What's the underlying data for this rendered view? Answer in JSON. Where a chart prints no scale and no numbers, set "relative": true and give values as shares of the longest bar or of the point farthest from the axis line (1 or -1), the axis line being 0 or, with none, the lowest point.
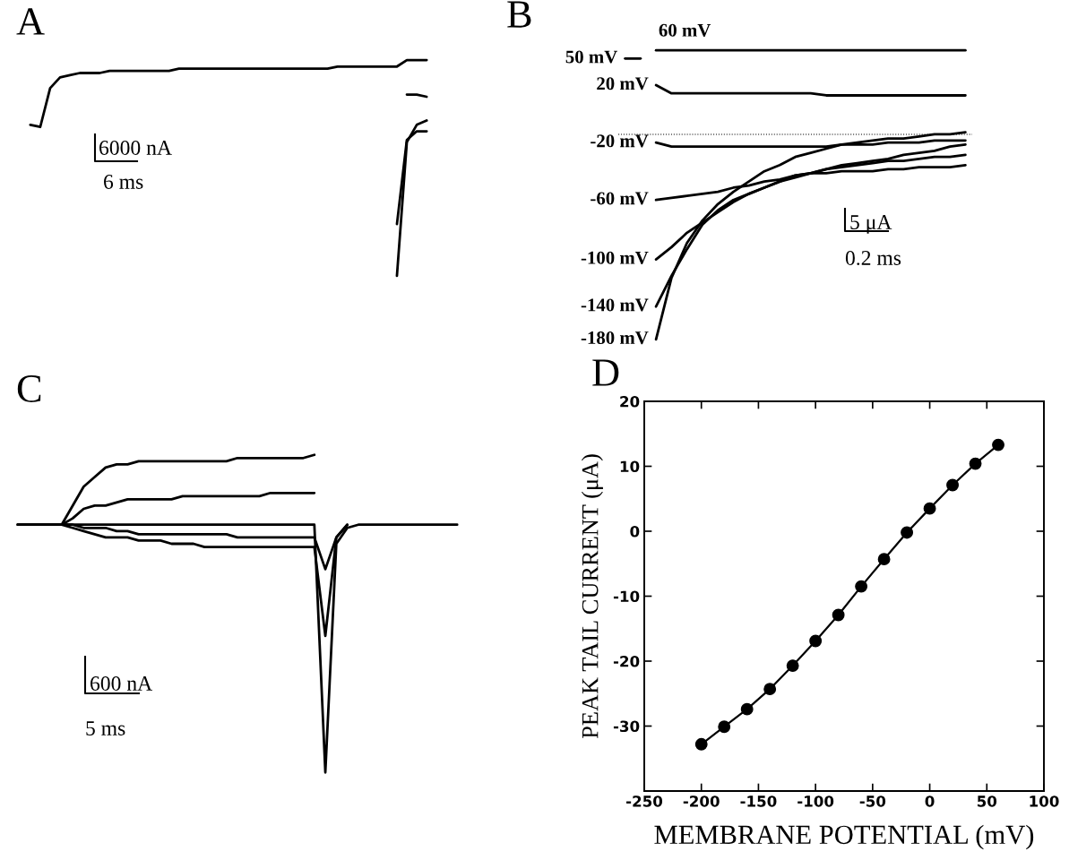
{
  "chart_data": [
    {
      "type": "line",
      "title": "A",
      "relative": true,
      "annotations": [
        "6000 nA",
        "6 ms"
      ],
      "categories": [
        null,
        null,
        null,
        null,
        null,
        null,
        null,
        null,
        null,
        null,
        null,
        null,
        null,
        null,
        null,
        null,
        null,
        null,
        null,
        null,
        null,
        null,
        null,
        null,
        null,
        null,
        null,
        null,
        null,
        null,
        null,
        null,
        null,
        null,
        null,
        null,
        null,
        null,
        null,
        null,
        null
      ],
      "series": [
        {
          "color": "#000000",
          "values": [
            0.7,
            0.69,
            0.87,
            0.92,
            0.93,
            0.94,
            0.94,
            0.94,
            0.95,
            0.95,
            0.95,
            0.95,
            0.95,
            0.95,
            0.95,
            0.96,
            0.96,
            0.96,
            0.96,
            0.96,
            0.96,
            0.96,
            0.96,
            0.96,
            0.96,
            0.96,
            0.96,
            0.96,
            0.96,
            0.96,
            0.96,
            0.97,
            0.97,
            0.97,
            0.97,
            0.97,
            0.97,
            0.97,
            1.0,
            1.0,
            1.0
          ]
        },
        {
          "color": "#000000",
          "values": [
            null,
            null,
            null,
            null,
            null,
            null,
            null,
            null,
            null,
            null,
            null,
            null,
            null,
            null,
            null,
            null,
            null,
            null,
            null,
            null,
            null,
            null,
            null,
            null,
            null,
            null,
            null,
            null,
            null,
            null,
            null,
            null,
            null,
            null,
            null,
            null,
            null,
            null,
            0.84,
            0.84,
            0.83
          ]
        },
        {
          "color": "#000000",
          "values": [
            null,
            null,
            null,
            null,
            null,
            null,
            null,
            null,
            null,
            null,
            null,
            null,
            null,
            null,
            null,
            null,
            null,
            null,
            null,
            null,
            null,
            null,
            null,
            null,
            null,
            null,
            null,
            null,
            null,
            null,
            null,
            null,
            null,
            null,
            null,
            null,
            null,
            0,
            0.62,
            0.7,
            0.72
          ]
        },
        {
          "color": "#000000",
          "values": [
            null,
            null,
            null,
            null,
            null,
            null,
            null,
            null,
            null,
            null,
            null,
            null,
            null,
            null,
            null,
            null,
            null,
            null,
            null,
            null,
            null,
            null,
            null,
            null,
            null,
            null,
            null,
            null,
            null,
            null,
            null,
            null,
            null,
            null,
            null,
            null,
            null,
            0.24,
            0.63,
            0.67,
            0.67
          ]
        }
      ]
    },
    {
      "type": "line",
      "title": "B",
      "relative": true,
      "annotations": [
        "5 μA",
        "0.2 ms"
      ],
      "ref_lines": [
        {
          "axis": "y",
          "value": 0,
          "line_style": "dotted"
        }
      ],
      "categories": [
        null,
        null,
        null,
        null,
        null,
        null,
        null,
        null,
        null,
        null,
        null,
        null,
        null,
        null,
        null,
        null,
        null,
        null,
        null,
        null,
        null,
        null,
        null
      ],
      "series": [
        {
          "name": "60 mV",
          "color": "#000000",
          "values": [
            null,
            null,
            0.41,
            0.41,
            0.41,
            0.41,
            0.41,
            0.41,
            0.41,
            0.41,
            0.41,
            0.41,
            0.41,
            0.41,
            0.41,
            0.41,
            0.41,
            0.41,
            0.41,
            0.41,
            0.41,
            0.41,
            0.41
          ]
        },
        {
          "name": "50 mV",
          "color": "#000000",
          "values": [
            0.37,
            0.37,
            null,
            null,
            null,
            null,
            null,
            null,
            null,
            null,
            null,
            null,
            null,
            null,
            null,
            null,
            null,
            null,
            null,
            null,
            null,
            null,
            null
          ]
        },
        {
          "name": "20 mV",
          "color": "#000000",
          "values": [
            null,
            null,
            0.24,
            0.2,
            0.2,
            0.2,
            0.2,
            0.2,
            0.2,
            0.2,
            0.2,
            0.2,
            0.2,
            0.19,
            0.19,
            0.19,
            0.19,
            0.19,
            0.19,
            0.19,
            0.19,
            0.19,
            0.19
          ]
        },
        {
          "name": "-20 mV",
          "color": "#000000",
          "values": [
            null,
            null,
            -0.04,
            -0.06,
            -0.06,
            -0.06,
            -0.06,
            -0.06,
            -0.06,
            -0.06,
            -0.06,
            -0.06,
            -0.06,
            -0.06,
            -0.05,
            -0.05,
            -0.05,
            -0.04,
            -0.04,
            -0.04,
            -0.03,
            -0.03,
            -0.03
          ]
        },
        {
          "name": "-60 mV",
          "color": "#000000",
          "values": [
            null,
            null,
            -0.32,
            -0.31,
            -0.3,
            -0.29,
            -0.28,
            -0.26,
            -0.25,
            -0.23,
            -0.22,
            -0.2,
            -0.19,
            -0.19,
            -0.18,
            -0.18,
            -0.18,
            -0.17,
            -0.17,
            -0.16,
            -0.16,
            -0.16,
            -0.15
          ]
        },
        {
          "name": "-100 mV",
          "color": "#000000",
          "values": [
            null,
            null,
            -0.61,
            -0.55,
            -0.48,
            -0.43,
            -0.38,
            -0.33,
            -0.29,
            -0.26,
            -0.23,
            -0.21,
            -0.19,
            -0.17,
            -0.16,
            -0.15,
            -0.14,
            -0.13,
            -0.13,
            -0.12,
            -0.11,
            -0.11,
            -0.1
          ]
        },
        {
          "name": "-140 mV",
          "color": "#000000",
          "values": [
            null,
            null,
            -0.84,
            -0.69,
            -0.56,
            -0.44,
            -0.37,
            -0.32,
            -0.29,
            -0.26,
            -0.23,
            -0.2,
            -0.19,
            -0.17,
            -0.15,
            -0.14,
            -0.13,
            -0.12,
            -0.1,
            -0.09,
            -0.08,
            -0.06,
            -0.05
          ]
        },
        {
          "name": "-180 mV",
          "color": "#000000",
          "values": [
            null,
            null,
            -1.0,
            -0.7,
            -0.53,
            -0.42,
            -0.34,
            -0.28,
            -0.23,
            -0.18,
            -0.15,
            -0.11,
            -0.09,
            -0.07,
            -0.05,
            -0.04,
            -0.03,
            -0.02,
            -0.02,
            -0.01,
            0,
            0,
            0.01
          ]
        }
      ]
    },
    {
      "type": "line",
      "title": "C",
      "relative": true,
      "annotations": [
        "600 nA",
        "5 ms"
      ],
      "categories": [
        null,
        null,
        null,
        null,
        null,
        null,
        null,
        null,
        null,
        null,
        null,
        null,
        null,
        null,
        null,
        null,
        null,
        null,
        null,
        null,
        null,
        null,
        null,
        null,
        null,
        null,
        null,
        null,
        null,
        null,
        null,
        null,
        null,
        null,
        null,
        null,
        null,
        null,
        null,
        null,
        null
      ],
      "series": [
        {
          "color": "#000000",
          "values": [
            0.78,
            0.78,
            0.78,
            0.78,
            0.78,
            0.84,
            0.9,
            0.93,
            0.96,
            0.97,
            0.97,
            0.98,
            0.98,
            0.98,
            0.98,
            0.98,
            0.98,
            0.98,
            0.98,
            0.98,
            0.99,
            0.99,
            0.99,
            0.99,
            0.99,
            0.99,
            0.99,
            1.0,
            null,
            null,
            null,
            null,
            null,
            null,
            null,
            null,
            null,
            null,
            null,
            null,
            null
          ]
        },
        {
          "color": "#000000",
          "values": [
            0.78,
            0.78,
            0.78,
            0.78,
            0.78,
            0.8,
            0.83,
            0.84,
            0.84,
            0.85,
            0.86,
            0.86,
            0.86,
            0.86,
            0.86,
            0.87,
            0.87,
            0.87,
            0.87,
            0.87,
            0.87,
            0.87,
            0.87,
            0.88,
            0.88,
            0.88,
            0.88,
            0.88,
            null,
            null,
            null,
            null,
            null,
            null,
            null,
            null,
            null,
            null,
            null,
            null,
            null
          ]
        },
        {
          "color": "#000000",
          "values": [
            0.78,
            0.78,
            0.78,
            0.78,
            0.78,
            0.78,
            0.78,
            0.78,
            0.78,
            0.78,
            0.78,
            0.78,
            0.78,
            0.78,
            0.78,
            0.78,
            0.78,
            0.78,
            0.78,
            0.78,
            0.78,
            0.78,
            0.78,
            0.78,
            0.78,
            0.78,
            0.78,
            0.78,
            0,
            0.72,
            0.77,
            0.78,
            0.78,
            0.78,
            0.78,
            0.78,
            0.78,
            0.78,
            0.78,
            0.78,
            0.78
          ]
        },
        {
          "color": "#000000",
          "values": [
            null,
            null,
            null,
            null,
            0.78,
            0.77,
            0.76,
            0.75,
            0.74,
            0.74,
            0.74,
            0.73,
            0.73,
            0.73,
            0.72,
            0.72,
            0.72,
            0.71,
            0.71,
            0.71,
            0.71,
            0.71,
            0.71,
            0.71,
            0.71,
            0.71,
            0.71,
            0.71,
            0.43,
            0.74,
            0.78,
            null,
            null,
            null,
            null,
            null,
            null,
            null,
            null,
            null,
            null
          ]
        },
        {
          "color": "#000000",
          "values": [
            null,
            null,
            null,
            null,
            0.78,
            0.78,
            0.77,
            0.77,
            0.77,
            0.76,
            0.76,
            0.75,
            0.75,
            0.75,
            0.75,
            0.75,
            0.75,
            0.75,
            0.75,
            0.75,
            0.74,
            0.74,
            0.74,
            0.74,
            0.74,
            0.74,
            0.74,
            0.74,
            0.64,
            0.74,
            0.78,
            null,
            null,
            null,
            null,
            null,
            null,
            null,
            null,
            null,
            null
          ]
        }
      ]
    },
    {
      "type": "line",
      "title": "D",
      "xlabel": "MEMBRANE POTENTIAL (mV)",
      "ylabel": "PEAK TAIL CURRENT (μA)",
      "marker": "circle",
      "grid": false,
      "xlim": [
        -250,
        100
      ],
      "xticks": [
        -250,
        -200,
        -150,
        -100,
        -50,
        0,
        50,
        100
      ],
      "ylim": [
        -40,
        20
      ],
      "yticks": [
        -30,
        -20,
        -10,
        0,
        10,
        20
      ],
      "x": [
        -200,
        -180,
        -160,
        -140,
        -120,
        -100,
        -80,
        -60,
        -40,
        -20,
        0,
        20,
        40,
        60
      ],
      "series": [
        {
          "color": "#000000",
          "values": [
            -32.8,
            -30.1,
            -27.4,
            -24.3,
            -20.7,
            -16.9,
            -12.9,
            -8.5,
            -4.3,
            -0.2,
            3.5,
            7.1,
            10.4,
            13.3
          ]
        }
      ]
    }
  ]
}
